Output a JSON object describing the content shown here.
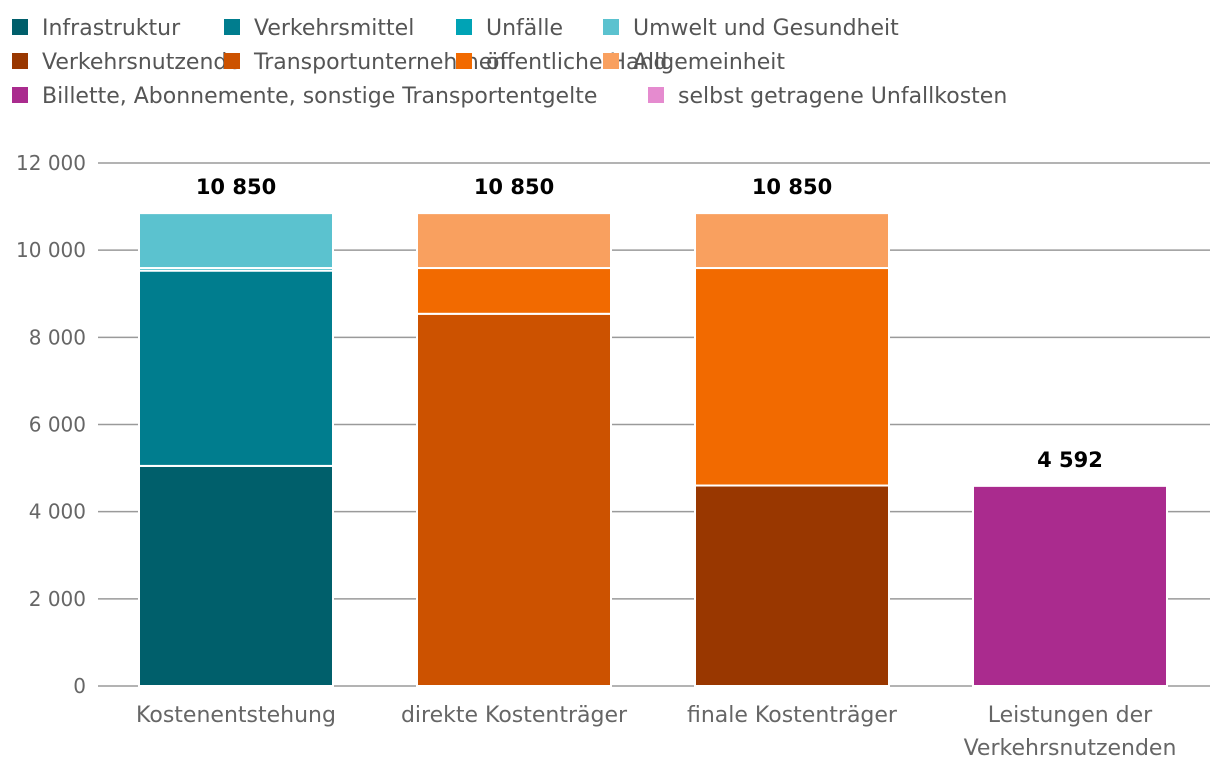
{
  "legend": [
    {
      "label": "Infrastruktur",
      "color": "#005F6B"
    },
    {
      "label": "Verkehrsmittel",
      "color": "#007D8E"
    },
    {
      "label": "Unfälle",
      "color": "#00A3B5"
    },
    {
      "label": "Umwelt und Gesundheit",
      "color": "#5BC2CF"
    },
    {
      "label": "Verkehrsnutzende",
      "color": "#993700"
    },
    {
      "label": "Transportunternehmen",
      "color": "#CC5200"
    },
    {
      "label": "öffentliche Hand",
      "color": "#F26A00"
    },
    {
      "label": "Allgemeinheit",
      "color": "#F9A05F"
    },
    {
      "label": "Billette, Abonnemente, sonstige Transportentgelte",
      "color": "#AA2B8E"
    },
    {
      "label": "selbst getragene Unfallkosten",
      "color": "#E58BCF"
    }
  ],
  "chart_data": {
    "type": "bar",
    "stacked": true,
    "ylim": [
      0,
      12000
    ],
    "yticks": [
      0,
      2000,
      4000,
      6000,
      8000,
      10000,
      12000
    ],
    "ytick_labels": [
      "0",
      "2 000",
      "4 000",
      "6 000",
      "8 000",
      "10 000",
      "12 000"
    ],
    "grid": true,
    "legend_position": "top",
    "categories": [
      {
        "label": "Kostenentstehung",
        "total_label": "10 850",
        "segments": [
          {
            "series": "Infrastruktur",
            "value": 5050
          },
          {
            "series": "Verkehrsmittel",
            "value": 4480
          },
          {
            "series": "Unfälle",
            "value": 60
          },
          {
            "series": "Umwelt und Gesundheit",
            "value": 1260
          }
        ]
      },
      {
        "label": "direkte Kostenträger",
        "total_label": "10 850",
        "segments": [
          {
            "series": "Transportunternehmen",
            "value": 8540
          },
          {
            "series": "öffentliche Hand",
            "value": 1050
          },
          {
            "series": "Allgemeinheit",
            "value": 1260
          }
        ]
      },
      {
        "label": "finale Kostenträger",
        "total_label": "10 850",
        "segments": [
          {
            "series": "Verkehrsnutzende",
            "value": 4600
          },
          {
            "series": "öffentliche Hand",
            "value": 4990
          },
          {
            "series": "Allgemeinheit",
            "value": 1260
          }
        ]
      },
      {
        "label": "Leistungen der Verkehrsnutzenden",
        "total_label": "4 592",
        "segments": [
          {
            "series": "Billette, Abonnemente, sonstige Transportentgelte",
            "value": 4592
          }
        ]
      }
    ]
  }
}
